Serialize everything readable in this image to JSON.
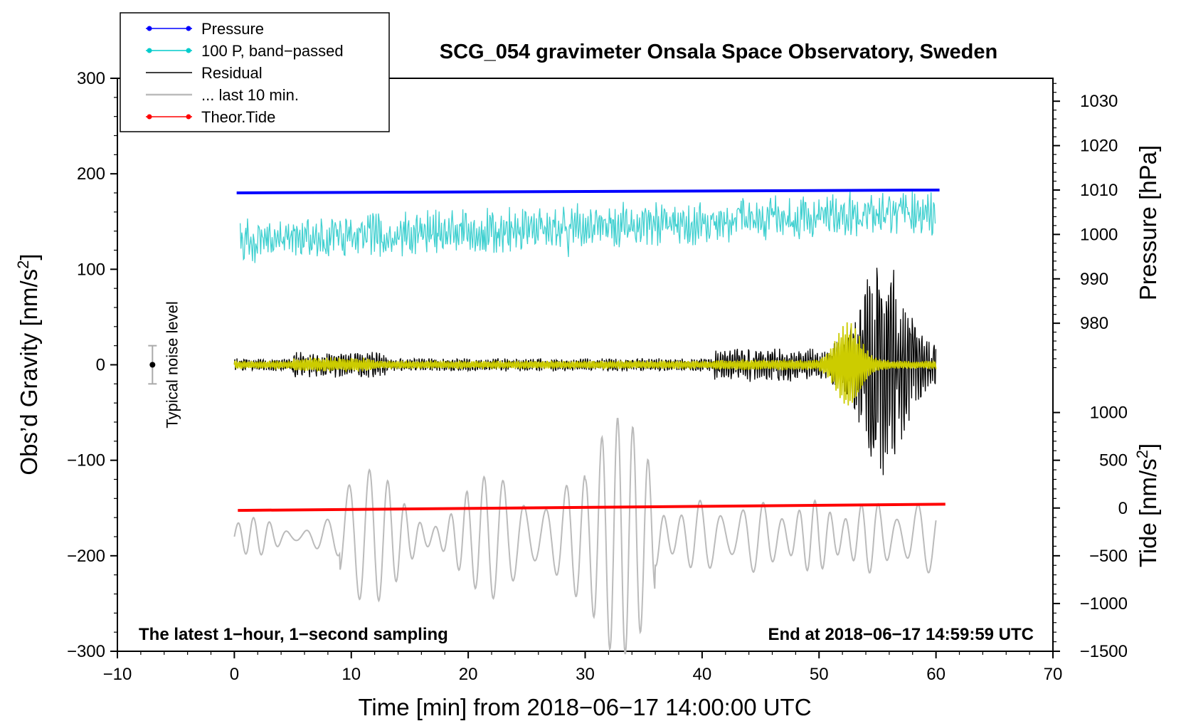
{
  "chart_data": {
    "type": "line",
    "title": "SCG_054 gravimeter Onsala Space Observatory, Sweden",
    "xlabel": "Time [min] from 2018−06−17 14:00:00 UTC",
    "ylabel_left": "Obs’d Gravity [nm/s",
    "ylabel_left_sup": "2",
    "ylabel_left_close": "]",
    "ylabel_right_pressure": "Pressure [hPa]",
    "ylabel_right_tide": "Tide [nm/s",
    "ylabel_right_tide_sup": "2",
    "ylabel_right_tide_close": "]",
    "xlim": [
      -10,
      70
    ],
    "ylim_left": [
      -300,
      300
    ],
    "x_ticks": [
      "−10",
      "0",
      "10",
      "20",
      "30",
      "40",
      "50",
      "60",
      "70"
    ],
    "x_tick_values": [
      -10,
      0,
      10,
      20,
      30,
      40,
      50,
      60,
      70
    ],
    "y_left_ticks": [
      "300",
      "200",
      "100",
      "0",
      "−100",
      "−200",
      "−300"
    ],
    "y_left_tick_values": [
      300,
      200,
      100,
      0,
      -100,
      -200,
      -300
    ],
    "pressure_axis": {
      "ticks": [
        "1030",
        "1020",
        "1010",
        "1000",
        "990",
        "980"
      ],
      "tick_values": [
        1030,
        1020,
        1010,
        1000,
        990,
        980
      ]
    },
    "tide_axis": {
      "ticks": [
        "1000",
        "500",
        "0",
        "−500",
        "−1000",
        "−1500"
      ],
      "tick_values": [
        1000,
        500,
        0,
        -500,
        -1000,
        -1500
      ]
    },
    "legend": {
      "placement": "top-left",
      "entries": [
        {
          "label": "Pressure",
          "color": "#0000ff",
          "marker": true
        },
        {
          "label": "100 P, band−passed",
          "color": "#00cccc",
          "marker": true
        },
        {
          "label": "Residual",
          "color": "#000000",
          "marker": false
        },
        {
          "label": "... last 10 min.",
          "color": "#bbbbbb",
          "marker": false
        },
        {
          "label": "Theor.Tide",
          "color": "#ff0000",
          "marker": true
        }
      ]
    },
    "series": [
      {
        "name": "Pressure",
        "color": "#0000ff",
        "x": [
          0.2,
          60.3
        ],
        "y_left": [
          180,
          183
        ]
      },
      {
        "name": "100 P, band−passed",
        "color": "#40d0d0",
        "x_range": [
          0.5,
          60
        ],
        "mean_start": 130,
        "mean_end": 160,
        "amplitude": 18
      },
      {
        "name": "Residual",
        "color": "#000000",
        "x_range": [
          0,
          60
        ],
        "center": 0,
        "burst_peak_x": 55.5,
        "burst_max": 130,
        "burst_min": -128
      },
      {
        "name": "Residual (smoothed)",
        "color": "#cccc00",
        "x_range": [
          0,
          60
        ],
        "center": 0,
        "burst_peak_x": 52.5,
        "burst_max": 45
      },
      {
        "name": "... last 10 min.",
        "color": "#bbbbbb",
        "x_range": [
          0,
          60
        ],
        "center": -180,
        "max": -55,
        "min": -310
      },
      {
        "name": "Theor.Tide",
        "color": "#ff0000",
        "x": [
          0.3,
          60.8
        ],
        "tide": [
          -25,
          40
        ]
      }
    ],
    "noise_level": {
      "label": "Typical noise level",
      "x": -7,
      "center": 0,
      "half_range": 20
    },
    "note_left": "The latest 1−hour, 1−second sampling",
    "note_right": "End at 2018−06−17 14:59:59 UTC",
    "grid": false
  }
}
